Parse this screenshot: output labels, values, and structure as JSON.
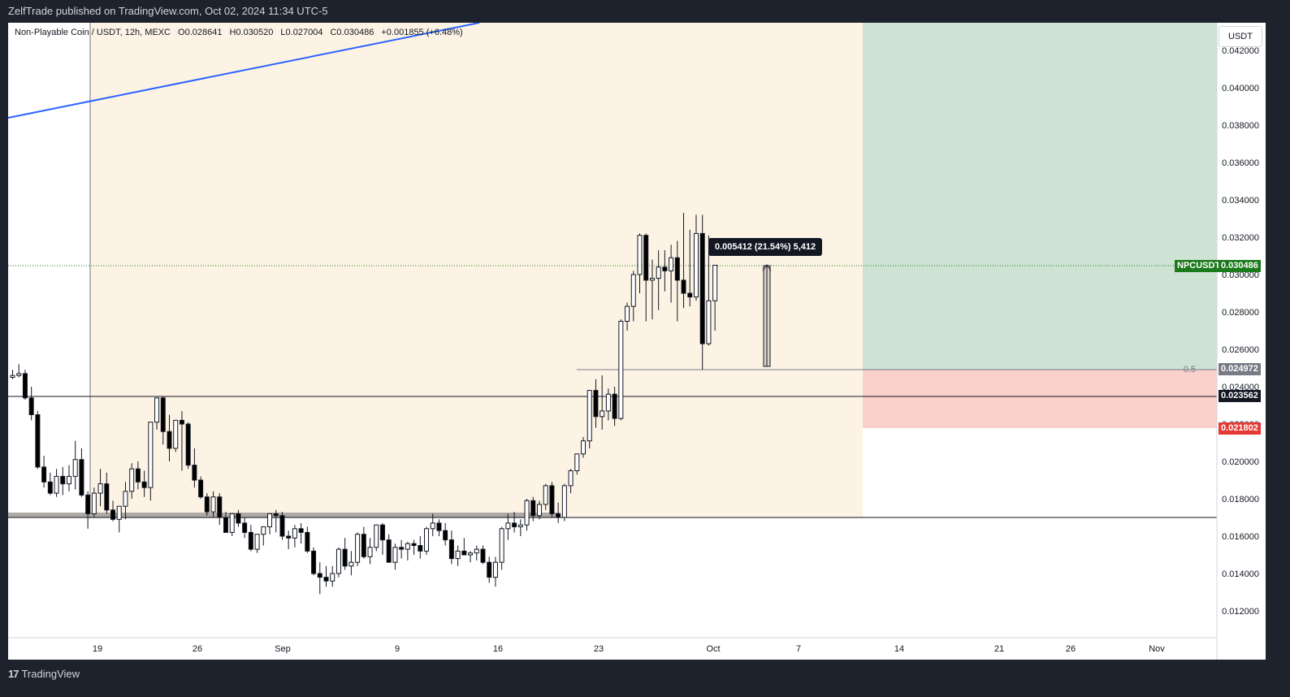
{
  "header": {
    "published_text": "ZelfTrade published on TradingView.com, Oct 02, 2024 11:34 UTC-5"
  },
  "footer": {
    "logo_text": "TradingView",
    "logo_mark": "17"
  },
  "legend": {
    "symbol": "Non-Playable Coin / USDT, 12h, MEXC",
    "open": "O0.028641",
    "high": "H0.030520",
    "low": "L0.027004",
    "close": "C0.030486",
    "change": "+0.001855 (+6.48%)"
  },
  "price_axis": {
    "currency_label": "USDT",
    "ticks": [
      "0.042000",
      "0.040000",
      "0.038000",
      "0.036000",
      "0.034000",
      "0.032000",
      "0.030000",
      "0.028000",
      "0.026000",
      "0.024000",
      "0.022000",
      "0.020000",
      "0.018000",
      "0.016000",
      "0.014000",
      "0.012000"
    ]
  },
  "time_axis": {
    "ticks": [
      "19",
      "26",
      "Sep",
      "9",
      "16",
      "23",
      "Oct",
      "7",
      "14",
      "21",
      "26",
      "Nov"
    ]
  },
  "tags": {
    "symbol_tag": "NPCUSDT",
    "last_price": "0.030486",
    "fib_level": "0.024972",
    "fib_label": "0.5",
    "horizontal_line": "0.023562",
    "stop_loss": "0.021802"
  },
  "measure": {
    "text": "0.005412 (21.54%) 5,412"
  },
  "colors": {
    "up_candle": "#ffffff",
    "down_candle": "#000000",
    "trendline": "#2962ff",
    "profit_zone": "#cfe3d5",
    "loss_zone": "#f9d0ca",
    "range_zone": "#fdf3e5",
    "last_price_tag": "#1b7a1b",
    "stop_tag": "#e53935",
    "fib_tag": "#787b86"
  },
  "chart_data": {
    "type": "candlestick",
    "title": "Non-Playable Coin / USDT, 12h, MEXC",
    "ylim": [
      0.0112,
      0.0435
    ],
    "series": [
      {
        "values": [
          [
            0.0245,
            0.0249,
            0.0244,
            0.0246
          ],
          [
            0.0246,
            0.0252,
            0.0245,
            0.0247
          ],
          [
            0.0247,
            0.0249,
            0.0233,
            0.0234
          ],
          [
            0.0234,
            0.024,
            0.0222,
            0.0225
          ],
          [
            0.0225,
            0.0227,
            0.0196,
            0.0197
          ],
          [
            0.0197,
            0.0203,
            0.0186,
            0.0189
          ],
          [
            0.0189,
            0.0194,
            0.0182,
            0.0183
          ],
          [
            0.0183,
            0.0196,
            0.0181,
            0.0192
          ],
          [
            0.0192,
            0.0197,
            0.0182,
            0.0188
          ],
          [
            0.0188,
            0.0198,
            0.0184,
            0.0192
          ],
          [
            0.0192,
            0.0211,
            0.0185,
            0.0201
          ],
          [
            0.0201,
            0.0207,
            0.0181,
            0.0182
          ],
          [
            0.0182,
            0.0184,
            0.0164,
            0.0172
          ],
          [
            0.0172,
            0.0186,
            0.017,
            0.0183
          ],
          [
            0.0183,
            0.0196,
            0.0176,
            0.0188
          ],
          [
            0.0188,
            0.0194,
            0.0172,
            0.0174
          ],
          [
            0.0174,
            0.0179,
            0.0168,
            0.0169
          ],
          [
            0.0169,
            0.0175,
            0.0162,
            0.0176
          ],
          [
            0.0176,
            0.0189,
            0.0169,
            0.0184
          ],
          [
            0.0184,
            0.0199,
            0.018,
            0.0196
          ],
          [
            0.0196,
            0.02,
            0.0185,
            0.0189
          ],
          [
            0.0189,
            0.0195,
            0.0181,
            0.0186
          ],
          [
            0.0186,
            0.0218,
            0.0179,
            0.0221
          ],
          [
            0.0221,
            0.0229,
            0.0217,
            0.0234
          ],
          [
            0.0234,
            0.0235,
            0.0209,
            0.0216
          ],
          [
            0.0216,
            0.0225,
            0.02,
            0.0207
          ],
          [
            0.0207,
            0.0221,
            0.0205,
            0.0222
          ],
          [
            0.0222,
            0.0227,
            0.0195,
            0.022
          ],
          [
            0.022,
            0.0221,
            0.0196,
            0.0198
          ],
          [
            0.0198,
            0.0207,
            0.0186,
            0.019
          ],
          [
            0.019,
            0.0192,
            0.018,
            0.0181
          ],
          [
            0.0181,
            0.0183,
            0.0171,
            0.0173
          ],
          [
            0.0173,
            0.0184,
            0.017,
            0.0181
          ],
          [
            0.0181,
            0.0183,
            0.0166,
            0.017
          ],
          [
            0.017,
            0.0173,
            0.0162,
            0.0162
          ],
          [
            0.0162,
            0.0169,
            0.016,
            0.0172
          ],
          [
            0.0172,
            0.0174,
            0.0165,
            0.0167
          ],
          [
            0.0167,
            0.017,
            0.0159,
            0.0162
          ],
          [
            0.0162,
            0.0166,
            0.0152,
            0.0153
          ],
          [
            0.0153,
            0.016,
            0.0151,
            0.0161
          ],
          [
            0.0161,
            0.0164,
            0.0155,
            0.0165
          ],
          [
            0.0165,
            0.0172,
            0.0161,
            0.0172
          ],
          [
            0.0172,
            0.0174,
            0.0162,
            0.0171
          ],
          [
            0.0171,
            0.0173,
            0.0158,
            0.016
          ],
          [
            0.016,
            0.0163,
            0.0153,
            0.0159
          ],
          [
            0.0159,
            0.0166,
            0.0154,
            0.0164
          ],
          [
            0.0164,
            0.0167,
            0.0156,
            0.0162
          ],
          [
            0.0162,
            0.0165,
            0.0151,
            0.0152
          ],
          [
            0.0152,
            0.0154,
            0.0139,
            0.014
          ],
          [
            0.014,
            0.0146,
            0.0129,
            0.0138
          ],
          [
            0.0138,
            0.0144,
            0.0133,
            0.0136
          ],
          [
            0.0136,
            0.0144,
            0.0133,
            0.014
          ],
          [
            0.014,
            0.0154,
            0.0138,
            0.0153
          ],
          [
            0.0153,
            0.0159,
            0.0142,
            0.0144
          ],
          [
            0.0144,
            0.0152,
            0.0139,
            0.0146
          ],
          [
            0.0146,
            0.0162,
            0.0144,
            0.0161
          ],
          [
            0.0161,
            0.0165,
            0.0148,
            0.0149
          ],
          [
            0.0149,
            0.0159,
            0.0145,
            0.0154
          ],
          [
            0.0154,
            0.0166,
            0.0152,
            0.0166
          ],
          [
            0.0166,
            0.0167,
            0.015,
            0.0158
          ],
          [
            0.0158,
            0.0161,
            0.0146,
            0.0146
          ],
          [
            0.0146,
            0.0156,
            0.0142,
            0.0154
          ],
          [
            0.0154,
            0.0158,
            0.0148,
            0.0153
          ],
          [
            0.0153,
            0.0157,
            0.0147,
            0.0156
          ],
          [
            0.0156,
            0.0158,
            0.015,
            0.0155
          ],
          [
            0.0155,
            0.016,
            0.0148,
            0.0152
          ],
          [
            0.0152,
            0.0165,
            0.015,
            0.0164
          ],
          [
            0.0164,
            0.0172,
            0.016,
            0.0167
          ],
          [
            0.0167,
            0.0169,
            0.016,
            0.0163
          ],
          [
            0.0163,
            0.0167,
            0.0155,
            0.0158
          ],
          [
            0.0158,
            0.0163,
            0.0145,
            0.0148
          ],
          [
            0.0148,
            0.0155,
            0.0144,
            0.0152
          ],
          [
            0.0152,
            0.0159,
            0.015,
            0.015
          ],
          [
            0.015,
            0.0152,
            0.0146,
            0.0151
          ],
          [
            0.0151,
            0.0155,
            0.0147,
            0.0153
          ],
          [
            0.0153,
            0.0155,
            0.0145,
            0.0146
          ],
          [
            0.0146,
            0.0149,
            0.0135,
            0.0138
          ],
          [
            0.0138,
            0.0149,
            0.0133,
            0.0146
          ],
          [
            0.0146,
            0.0165,
            0.0142,
            0.0164
          ],
          [
            0.0164,
            0.0172,
            0.0158,
            0.0167
          ],
          [
            0.0167,
            0.0173,
            0.0162,
            0.0165
          ],
          [
            0.0165,
            0.0169,
            0.016,
            0.0166
          ],
          [
            0.0166,
            0.018,
            0.0163,
            0.0179
          ],
          [
            0.0179,
            0.0181,
            0.0168,
            0.0171
          ],
          [
            0.0171,
            0.0179,
            0.0169,
            0.0177
          ],
          [
            0.0177,
            0.0188,
            0.0174,
            0.0187
          ],
          [
            0.0187,
            0.0189,
            0.017,
            0.0172
          ],
          [
            0.0172,
            0.0178,
            0.0167,
            0.017
          ],
          [
            0.017,
            0.0188,
            0.0168,
            0.0187
          ],
          [
            0.0187,
            0.0196,
            0.0183,
            0.0195
          ],
          [
            0.0195,
            0.0204,
            0.0193,
            0.0204
          ],
          [
            0.0204,
            0.0213,
            0.0202,
            0.0211
          ],
          [
            0.0211,
            0.0238,
            0.0207,
            0.0238
          ],
          [
            0.0238,
            0.0244,
            0.0218,
            0.0224
          ],
          [
            0.0224,
            0.0246,
            0.0217,
            0.0227
          ],
          [
            0.0227,
            0.0239,
            0.0222,
            0.0236
          ],
          [
            0.0236,
            0.024,
            0.0219,
            0.0223
          ],
          [
            0.0223,
            0.0276,
            0.0222,
            0.0275
          ],
          [
            0.0275,
            0.0285,
            0.027,
            0.0283
          ],
          [
            0.0283,
            0.0302,
            0.0275,
            0.03
          ],
          [
            0.03,
            0.0322,
            0.029,
            0.0321
          ],
          [
            0.0321,
            0.0322,
            0.0275,
            0.0297
          ],
          [
            0.0297,
            0.0308,
            0.0276,
            0.0298
          ],
          [
            0.0298,
            0.0313,
            0.0281,
            0.0304
          ],
          [
            0.0304,
            0.0313,
            0.0291,
            0.0302
          ],
          [
            0.0302,
            0.0316,
            0.0285,
            0.0309
          ],
          [
            0.0309,
            0.0318,
            0.0275,
            0.0297
          ],
          [
            0.0297,
            0.0333,
            0.0282,
            0.029
          ],
          [
            0.029,
            0.0324,
            0.0283,
            0.0288
          ],
          [
            0.0288,
            0.0332,
            0.0286,
            0.0322
          ],
          [
            0.0322,
            0.0332,
            0.0249,
            0.0263
          ],
          [
            0.0263,
            0.0321,
            0.0262,
            0.0286
          ],
          [
            0.0286,
            0.0305,
            0.027,
            0.0305
          ]
        ]
      }
    ]
  }
}
